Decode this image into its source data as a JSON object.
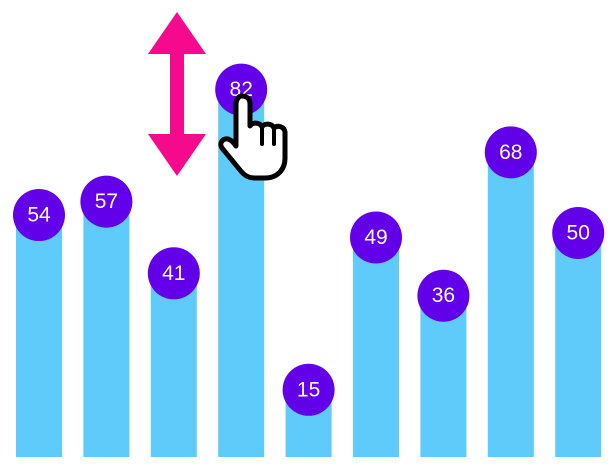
{
  "chart_data": {
    "type": "bar",
    "values": [
      54,
      57,
      41,
      82,
      15,
      49,
      36,
      68,
      50
    ],
    "color": "#5ecbfa",
    "label_color": "#6200ea",
    "ylim": [
      0,
      102
    ]
  }
}
